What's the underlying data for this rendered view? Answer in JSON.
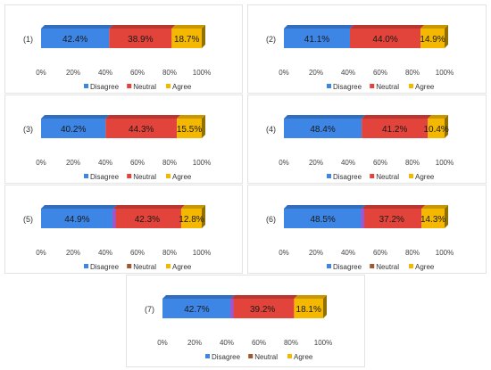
{
  "colors": {
    "disagree": "#3d86e6",
    "neutral": "#e2433a",
    "agree": "#f5b800",
    "neutral_legend": "#9c5a2e",
    "sliver_purple": "#9b59d6"
  },
  "chart_data": [
    {
      "type": "bar",
      "orientation": "horizontal",
      "stacked": true,
      "style": "3d",
      "id_label": "(1)",
      "categories": [
        "Disagree",
        "Neutral",
        "Agree"
      ],
      "values": [
        42.4,
        38.9,
        18.7
      ],
      "value_labels": [
        "42.4%",
        "38.9%",
        "18.7%"
      ],
      "xlim": [
        0,
        100
      ],
      "x_ticks": [
        "0%",
        "20%",
        "40%",
        "60%",
        "80%",
        "100%"
      ],
      "legend": [
        {
          "label": "Disagree",
          "color": "#3d86e6"
        },
        {
          "label": "Neutral",
          "color": "#e2433a"
        },
        {
          "label": "Agree",
          "color": "#f5b800"
        }
      ],
      "legend_position": "bottom",
      "grid": false
    },
    {
      "type": "bar",
      "orientation": "horizontal",
      "stacked": true,
      "style": "3d",
      "id_label": "(2)",
      "categories": [
        "Disagree",
        "Neutral",
        "Agree"
      ],
      "values": [
        41.1,
        44.0,
        14.9
      ],
      "value_labels": [
        "41.1%",
        "44.0%",
        "14.9%"
      ],
      "xlim": [
        0,
        100
      ],
      "x_ticks": [
        "0%",
        "20%",
        "40%",
        "60%",
        "80%",
        "100%"
      ],
      "legend": [
        {
          "label": "Disagree",
          "color": "#3d86e6"
        },
        {
          "label": "Neutral",
          "color": "#e2433a"
        },
        {
          "label": "Agree",
          "color": "#f5b800"
        }
      ],
      "legend_position": "bottom",
      "grid": false
    },
    {
      "type": "bar",
      "orientation": "horizontal",
      "stacked": true,
      "style": "3d",
      "id_label": "(3)",
      "categories": [
        "Disagree",
        "Neutral",
        "Agree"
      ],
      "values": [
        40.2,
        44.3,
        15.5
      ],
      "value_labels": [
        "40.2%",
        "44.3%",
        "15.5%"
      ],
      "xlim": [
        0,
        100
      ],
      "x_ticks": [
        "0%",
        "20%",
        "40%",
        "60%",
        "80%",
        "100%"
      ],
      "legend": [
        {
          "label": "Disagree",
          "color": "#3d86e6"
        },
        {
          "label": "Neutral",
          "color": "#e2433a"
        },
        {
          "label": "Agree",
          "color": "#f5b800"
        }
      ],
      "legend_position": "bottom",
      "grid": false
    },
    {
      "type": "bar",
      "orientation": "horizontal",
      "stacked": true,
      "style": "3d",
      "id_label": "(4)",
      "categories": [
        "Disagree",
        "Neutral",
        "Agree"
      ],
      "values": [
        48.4,
        41.2,
        10.4
      ],
      "value_labels": [
        "48.4%",
        "41.2%",
        "10.4%"
      ],
      "xlim": [
        0,
        100
      ],
      "x_ticks": [
        "0%",
        "20%",
        "40%",
        "60%",
        "80%",
        "100%"
      ],
      "legend": [
        {
          "label": "Disagree",
          "color": "#3d86e6"
        },
        {
          "label": "Neutral",
          "color": "#e2433a"
        },
        {
          "label": "Agree",
          "color": "#f5b800"
        }
      ],
      "legend_position": "bottom",
      "grid": false
    },
    {
      "type": "bar",
      "orientation": "horizontal",
      "stacked": true,
      "style": "3d",
      "id_label": "(5)",
      "categories": [
        "Disagree",
        "Neutral",
        "Agree"
      ],
      "values": [
        44.9,
        42.3,
        12.8
      ],
      "value_labels": [
        "44.9%",
        "42.3%",
        "12.8%"
      ],
      "xlim": [
        0,
        100
      ],
      "x_ticks": [
        "0%",
        "20%",
        "40%",
        "60%",
        "80%",
        "100%"
      ],
      "legend": [
        {
          "label": "Disagree",
          "color": "#3d86e6"
        },
        {
          "label": "Neutral",
          "color": "#9c5a2e"
        },
        {
          "label": "Agree",
          "color": "#f5b800"
        }
      ],
      "legend_position": "bottom",
      "grid": false
    },
    {
      "type": "bar",
      "orientation": "horizontal",
      "stacked": true,
      "style": "3d",
      "id_label": "(6)",
      "categories": [
        "Disagree",
        "Neutral",
        "Agree"
      ],
      "values": [
        48.5,
        37.2,
        14.3
      ],
      "value_labels": [
        "48.5%",
        "37.2%",
        "14.3%"
      ],
      "xlim": [
        0,
        100
      ],
      "x_ticks": [
        "0%",
        "20%",
        "40%",
        "60%",
        "80%",
        "100%"
      ],
      "legend": [
        {
          "label": "Disagree",
          "color": "#3d86e6"
        },
        {
          "label": "Neutral",
          "color": "#9c5a2e"
        },
        {
          "label": "Agree",
          "color": "#f5b800"
        }
      ],
      "legend_position": "bottom",
      "grid": false
    },
    {
      "type": "bar",
      "orientation": "horizontal",
      "stacked": true,
      "style": "3d",
      "id_label": "(7)",
      "categories": [
        "Disagree",
        "Neutral",
        "Agree"
      ],
      "values": [
        42.7,
        39.2,
        18.1
      ],
      "value_labels": [
        "42.7%",
        "39.2%",
        "18.1%"
      ],
      "xlim": [
        0,
        100
      ],
      "x_ticks": [
        "0%",
        "20%",
        "40%",
        "60%",
        "80%",
        "100%"
      ],
      "legend": [
        {
          "label": "Disagree",
          "color": "#3d86e6"
        },
        {
          "label": "Neutral",
          "color": "#9c5a2e"
        },
        {
          "label": "Agree",
          "color": "#f5b800"
        }
      ],
      "legend_position": "bottom",
      "grid": false
    }
  ]
}
